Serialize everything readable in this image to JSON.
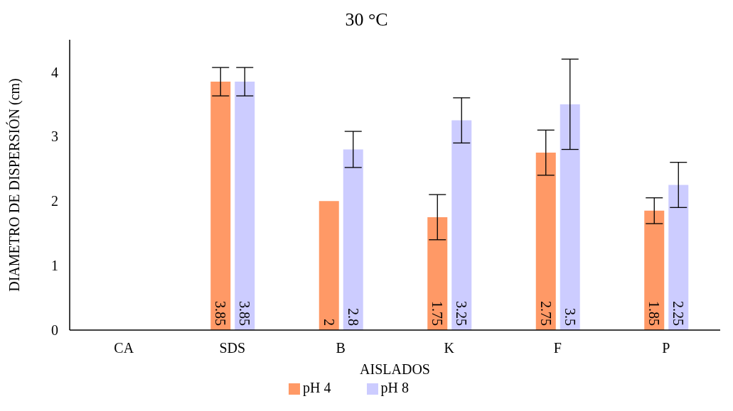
{
  "chart_data": {
    "type": "bar",
    "title": "30 °C",
    "xlabel": "AISLADOS",
    "ylabel": "DIAMETRO  DE DISPERSIÓN  (cm)",
    "categories": [
      "CA",
      "SDS",
      "B",
      "K",
      "F",
      "P"
    ],
    "series": [
      {
        "name": "pH 4",
        "color": "#ff9966",
        "values": [
          null,
          3.85,
          2,
          1.75,
          2.75,
          1.85
        ],
        "errors": [
          null,
          0.22,
          0,
          0.35,
          0.35,
          0.2
        ]
      },
      {
        "name": "pH 8",
        "color": "#ccccff",
        "values": [
          null,
          3.85,
          2.8,
          3.25,
          3.5,
          2.25
        ],
        "errors": [
          null,
          0.22,
          0.28,
          0.35,
          0.7,
          0.35
        ]
      }
    ],
    "ylim": [
      0,
      4.5
    ],
    "yticks": [
      0,
      1,
      2,
      3,
      4
    ],
    "grid": false,
    "legend": "bottom",
    "data_labels": true
  }
}
